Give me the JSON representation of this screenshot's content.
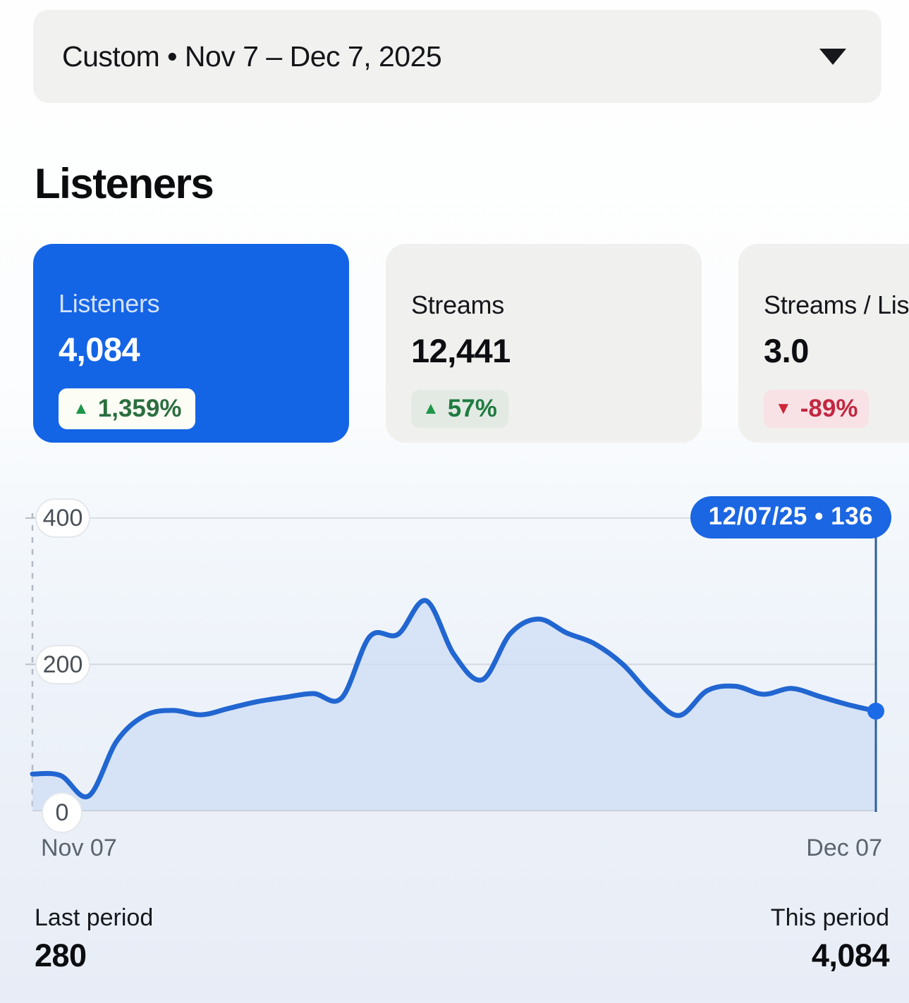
{
  "date_range": {
    "label": "Custom • Nov 7 – Dec 7, 2025"
  },
  "page_title": "Listeners",
  "icons": {
    "caret_down": "▼",
    "arrow_up": "▲",
    "arrow_down": "▼"
  },
  "metric_cards": [
    {
      "id": "listeners",
      "label": "Listeners",
      "value": "4,084",
      "delta": "1,359%",
      "direction": "up",
      "selected": true
    },
    {
      "id": "streams",
      "label": "Streams",
      "value": "12,441",
      "delta": "57%",
      "direction": "up",
      "selected": false
    },
    {
      "id": "streams-per-listener",
      "label": "Streams / Listener",
      "value": "3.0",
      "delta": "-89%",
      "direction": "down",
      "selected": false
    }
  ],
  "chart": {
    "tooltip_label": "12/07/25 • 136"
  },
  "chart_data": {
    "type": "area",
    "series_name": "Listeners",
    "x": [
      "Nov 07",
      "Nov 08",
      "Nov 09",
      "Nov 10",
      "Nov 11",
      "Nov 12",
      "Nov 13",
      "Nov 14",
      "Nov 15",
      "Nov 16",
      "Nov 17",
      "Nov 18",
      "Nov 19",
      "Nov 20",
      "Nov 21",
      "Nov 22",
      "Nov 23",
      "Nov 24",
      "Nov 25",
      "Nov 26",
      "Nov 27",
      "Nov 28",
      "Nov 29",
      "Nov 30",
      "Dec 01",
      "Dec 02",
      "Dec 03",
      "Dec 04",
      "Dec 05",
      "Dec 06",
      "Dec 07"
    ],
    "values": [
      50,
      48,
      20,
      95,
      130,
      137,
      131,
      140,
      149,
      155,
      160,
      154,
      238,
      241,
      287,
      213,
      179,
      242,
      262,
      243,
      228,
      200,
      158,
      130,
      164,
      170,
      159,
      167,
      156,
      145,
      136
    ],
    "ylim": [
      0,
      400
    ],
    "yticks": [
      400,
      200,
      0
    ],
    "xtick_labels": [
      "Nov 07",
      "Dec 07"
    ],
    "grid": "horizontal",
    "legend": "none",
    "selected_point": {
      "date_label": "12/07/25",
      "value": 136
    }
  },
  "summary": {
    "last_period_label": "Last period",
    "last_period_value": "280",
    "this_period_label": "This period",
    "this_period_value": "4,084"
  },
  "colors": {
    "accent_blue": "#1464e6",
    "line_blue": "#2166d1",
    "area_fill": "#cdddf4",
    "tooltip_bg": "#1b66e2",
    "positive_green": "#1e9648",
    "negative_red": "#cf2538"
  }
}
